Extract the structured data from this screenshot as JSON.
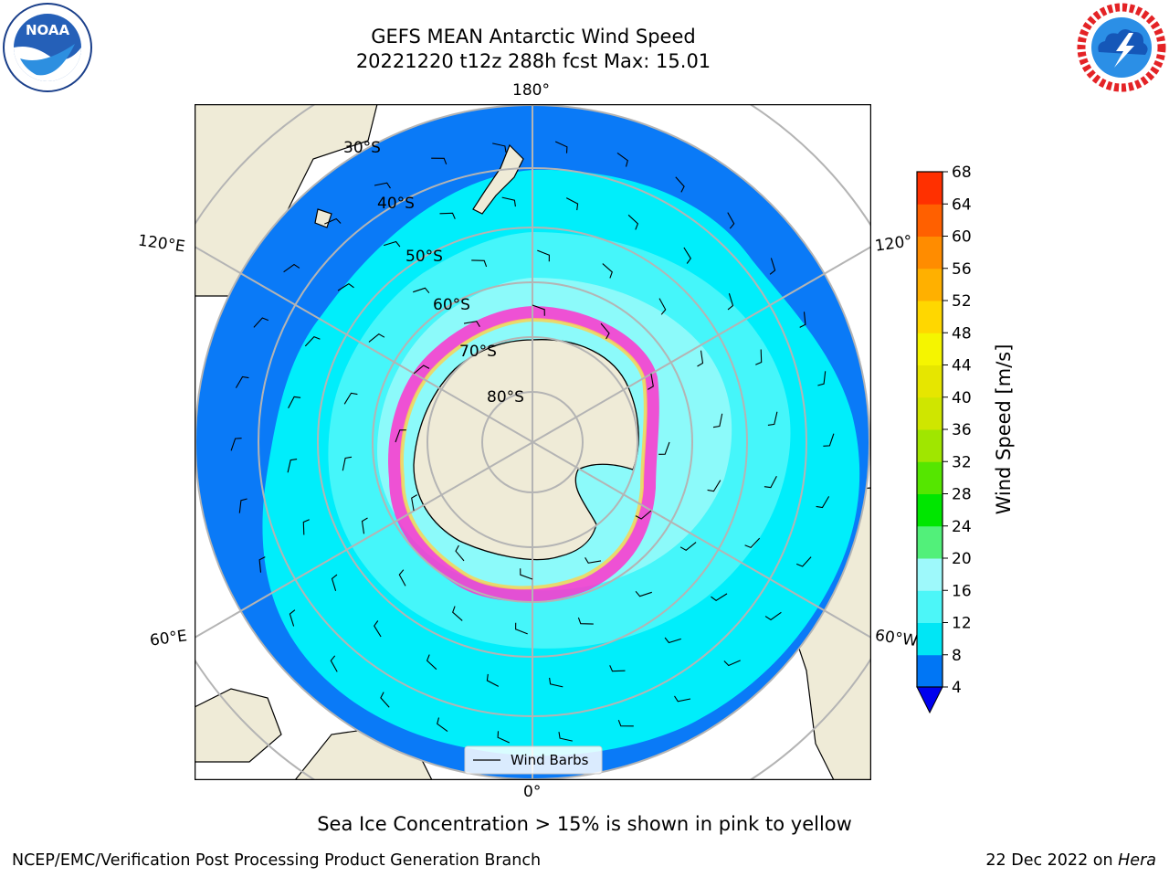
{
  "title_line1": "GEFS MEAN Antarctic Wind Speed",
  "title_line2": "20221220 t12z 288h fcst   Max: 15.01",
  "caption": "Sea Ice Concentration > 15% is shown in pink to yellow",
  "credit_left": "NCEP/EMC/Verification Post Processing Product Generation Branch",
  "credit_date": "22 Dec 2022 on",
  "credit_host": "Hera",
  "logos": {
    "left": "noaa-logo",
    "right": "nws-logo",
    "noaa_text": "NOAA"
  },
  "map": {
    "projection": "south-polar-stereographic",
    "lon_labels": {
      "top": "180°",
      "bottom": "0°",
      "left_upper": "120°E",
      "left_lower": "60°E",
      "right_upper": "120°",
      "right_lower": "60°W"
    },
    "lat_labels": [
      "30°S",
      "40°S",
      "50°S",
      "60°S",
      "70°S",
      "80°S"
    ],
    "legend_label": "Wind Barbs",
    "colors": {
      "land": "#efebd7",
      "band_4_8": "#0a7af7",
      "band_8_12": "#00eefb",
      "band_12_16": "#4cf6fa",
      "band_16_20": "#9efbfa",
      "sea_ice": "#ff33cc",
      "grid": "#b4b4b4"
    }
  },
  "colorbar": {
    "label": "Wind Speed [m/s]",
    "ticks": [
      "68",
      "64",
      "60",
      "56",
      "52",
      "48",
      "44",
      "40",
      "36",
      "32",
      "28",
      "24",
      "20",
      "16",
      "12",
      "8",
      "4"
    ],
    "colors_bottom_to_top": [
      "#0076f5",
      "#00e6f5",
      "#4cf6f8",
      "#9ef9fb",
      "#52f07a",
      "#00e600",
      "#55e600",
      "#a0e600",
      "#cfe600",
      "#e6e600",
      "#f5f500",
      "#ffd700",
      "#ffb000",
      "#ff8c00",
      "#ff6000",
      "#ff3000",
      "#ff0000"
    ],
    "extend_color": "#0000ee"
  }
}
